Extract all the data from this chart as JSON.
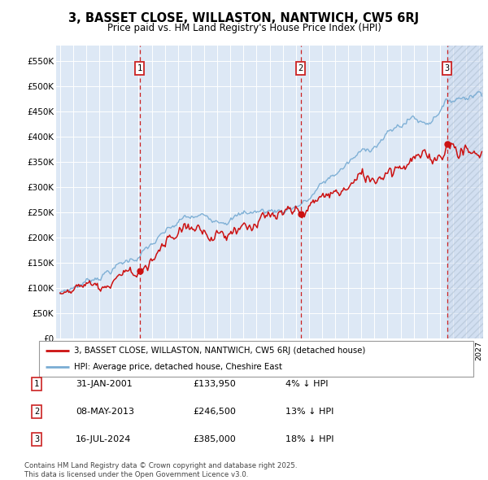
{
  "title": "3, BASSET CLOSE, WILLASTON, NANTWICH, CW5 6RJ",
  "subtitle": "Price paid vs. HM Land Registry's House Price Index (HPI)",
  "background_color": "#dde8f5",
  "ylim": [
    0,
    580000
  ],
  "yticks": [
    0,
    50000,
    100000,
    150000,
    200000,
    250000,
    300000,
    350000,
    400000,
    450000,
    500000,
    550000
  ],
  "ytick_labels": [
    "£0",
    "£50K",
    "£100K",
    "£150K",
    "£200K",
    "£250K",
    "£300K",
    "£350K",
    "£400K",
    "£450K",
    "£500K",
    "£550K"
  ],
  "xlim_start": 1994.7,
  "xlim_end": 2027.3,
  "sale_dates": [
    2001.08,
    2013.36,
    2024.54
  ],
  "sale_prices": [
    133950,
    246500,
    385000
  ],
  "sale_labels": [
    "1",
    "2",
    "3"
  ],
  "vline_color": "#cc2222",
  "legend_line1": "3, BASSET CLOSE, WILLASTON, NANTWICH, CW5 6RJ (detached house)",
  "legend_line2": "HPI: Average price, detached house, Cheshire East",
  "table_rows": [
    [
      "1",
      "31-JAN-2001",
      "£133,950",
      "4% ↓ HPI"
    ],
    [
      "2",
      "08-MAY-2013",
      "£246,500",
      "13% ↓ HPI"
    ],
    [
      "3",
      "16-JUL-2024",
      "£385,000",
      "18% ↓ HPI"
    ]
  ],
  "footer": "Contains HM Land Registry data © Crown copyright and database right 2025.\nThis data is licensed under the Open Government Licence v3.0.",
  "red_line_color": "#cc1111",
  "blue_line_color": "#7aadd4",
  "hatch_region_start": 2024.54,
  "hatch_region_end": 2027.3
}
